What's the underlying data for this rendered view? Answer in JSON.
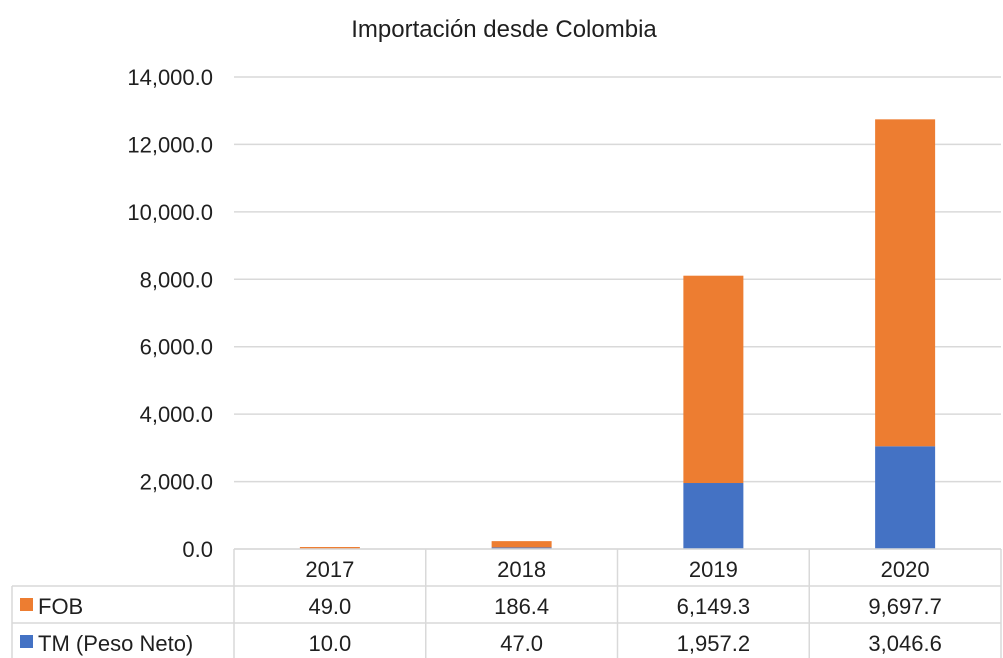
{
  "chart_data": {
    "type": "bar",
    "stacked": true,
    "title": "Importación desde Colombia",
    "categories": [
      "2017",
      "2018",
      "2019",
      "2020"
    ],
    "series": [
      {
        "name": "TM (Peso Neto)",
        "color": "#4472C4",
        "values": [
          10.0,
          47.0,
          1957.2,
          3046.6
        ],
        "labels": [
          "10.0",
          "47.0",
          "1,957.2",
          "3,046.6"
        ]
      },
      {
        "name": "FOB",
        "color": "#ED7D31",
        "values": [
          49.0,
          186.4,
          6149.3,
          9697.7
        ],
        "labels": [
          "49.0",
          "186.4",
          "6,149.3",
          "9,697.7"
        ]
      }
    ],
    "ylim": [
      0,
      14000
    ],
    "yticks": [
      0,
      2000,
      4000,
      6000,
      8000,
      10000,
      12000,
      14000
    ],
    "ytick_labels": [
      "0.0",
      "2,000.0",
      "4,000.0",
      "6,000.0",
      "8,000.0",
      "10,000.0",
      "12,000.0",
      "14,000.0"
    ],
    "grid": true,
    "legend": "data-table",
    "table_row_order": [
      "FOB",
      "TM (Peso Neto)"
    ]
  }
}
